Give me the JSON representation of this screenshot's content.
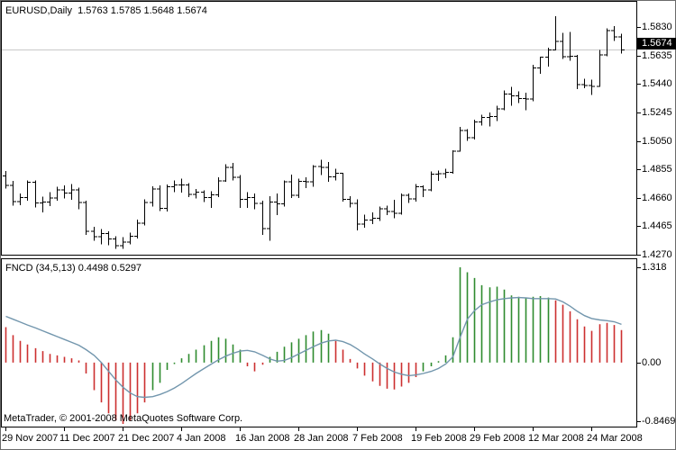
{
  "price_chart": {
    "title": "EURUSD,Daily",
    "ohlc_label": "1.5763 1.5785 1.5648 1.5674",
    "current_price_label": "1.5674"
  },
  "indicator": {
    "title": "FNCD (34,5,13)",
    "values_label": "0.4498 0.5297"
  },
  "footer": {
    "copyright": "MetaTrader, © 2001-2008 MetaQuotes Software Corp."
  },
  "colors": {
    "bar_black": "#000000",
    "up_green": "#2e8b2e",
    "down_red": "#cc2f2f",
    "signal_blue": "#7296ad",
    "price_line_gray": "#c8c8c8",
    "tag_bg": "#000000",
    "tag_text": "#ffffff"
  },
  "chart_data": [
    {
      "type": "bar",
      "subtype": "ohlc-bars",
      "title": "EURUSD,Daily",
      "last_quote": {
        "open": 1.5763,
        "high": 1.5785,
        "low": 1.5648,
        "close": 1.5674
      },
      "current_price": 1.5674,
      "ylim": [
        1.427,
        1.583
      ],
      "y_ticks": [
        1.583,
        1.5635,
        1.544,
        1.5245,
        1.505,
        1.4855,
        1.466,
        1.4465,
        1.427
      ],
      "x_ticks": [
        {
          "i": 0,
          "label": "29 Nov 2007"
        },
        {
          "i": 8,
          "label": "11 Dec 2007"
        },
        {
          "i": 16,
          "label": "21 Dec 2007"
        },
        {
          "i": 24,
          "label": "4 Jan 2008"
        },
        {
          "i": 32,
          "label": "16 Jan 2008"
        },
        {
          "i": 40,
          "label": "28 Jan 2008"
        },
        {
          "i": 48,
          "label": "7 Feb 2008"
        },
        {
          "i": 56,
          "label": "19 Feb 2008"
        },
        {
          "i": 64,
          "label": "29 Feb 2008"
        },
        {
          "i": 72,
          "label": "12 Mar 2008"
        },
        {
          "i": 80,
          "label": "24 Mar 2008"
        }
      ],
      "bars": [
        [
          1.481,
          1.4843,
          1.4722,
          1.4744
        ],
        [
          1.4744,
          1.4776,
          1.4605,
          1.4633
        ],
        [
          1.4633,
          1.4688,
          1.4608,
          1.4663
        ],
        [
          1.4663,
          1.4778,
          1.464,
          1.4766
        ],
        [
          1.4766,
          1.4779,
          1.4595,
          1.4625
        ],
        [
          1.4625,
          1.4668,
          1.456,
          1.4631
        ],
        [
          1.4631,
          1.4698,
          1.4602,
          1.4657
        ],
        [
          1.4657,
          1.4735,
          1.464,
          1.4714
        ],
        [
          1.4714,
          1.4745,
          1.4655,
          1.4692
        ],
        [
          1.4692,
          1.4755,
          1.4645,
          1.4713
        ],
        [
          1.4713,
          1.473,
          1.458,
          1.4627
        ],
        [
          1.4627,
          1.464,
          1.4405,
          1.443
        ],
        [
          1.443,
          1.446,
          1.4365,
          1.4393
        ],
        [
          1.4393,
          1.4445,
          1.434,
          1.4415
        ],
        [
          1.4415,
          1.443,
          1.4335,
          1.4378
        ],
        [
          1.4378,
          1.4395,
          1.431,
          1.4332
        ],
        [
          1.4332,
          1.439,
          1.4309,
          1.4356
        ],
        [
          1.4356,
          1.442,
          1.434,
          1.4395
        ],
        [
          1.4395,
          1.451,
          1.438,
          1.4485
        ],
        [
          1.4485,
          1.465,
          1.447,
          1.4627
        ],
        [
          1.4627,
          1.474,
          1.46,
          1.472
        ],
        [
          1.472,
          1.4745,
          1.457,
          1.4589
        ],
        [
          1.4589,
          1.475,
          1.4565,
          1.4737
        ],
        [
          1.4737,
          1.478,
          1.47,
          1.4747
        ],
        [
          1.4747,
          1.479,
          1.4695,
          1.4748
        ],
        [
          1.4748,
          1.476,
          1.4665,
          1.4684
        ],
        [
          1.4684,
          1.472,
          1.4655,
          1.4697
        ],
        [
          1.4697,
          1.471,
          1.463,
          1.4663
        ],
        [
          1.4663,
          1.4705,
          1.459,
          1.468
        ],
        [
          1.468,
          1.48,
          1.4665,
          1.4776
        ],
        [
          1.4776,
          1.489,
          1.477,
          1.4869
        ],
        [
          1.4869,
          1.49,
          1.478,
          1.4801
        ],
        [
          1.4801,
          1.4815,
          1.459,
          1.4649
        ],
        [
          1.4649,
          1.47,
          1.459,
          1.4662
        ],
        [
          1.4662,
          1.469,
          1.458,
          1.4622
        ],
        [
          1.4622,
          1.464,
          1.4405,
          1.4448
        ],
        [
          1.4448,
          1.4672,
          1.4365,
          1.4632
        ],
        [
          1.4632,
          1.469,
          1.454,
          1.4618
        ],
        [
          1.4618,
          1.478,
          1.46,
          1.4769
        ],
        [
          1.4769,
          1.482,
          1.466,
          1.4677
        ],
        [
          1.4677,
          1.479,
          1.466,
          1.4772
        ],
        [
          1.4772,
          1.48,
          1.4725,
          1.477
        ],
        [
          1.477,
          1.4885,
          1.4735,
          1.4875
        ],
        [
          1.4875,
          1.492,
          1.4815,
          1.4867
        ],
        [
          1.4867,
          1.4905,
          1.477,
          1.4804
        ],
        [
          1.4804,
          1.486,
          1.478,
          1.4827
        ],
        [
          1.4827,
          1.483,
          1.4635,
          1.4648
        ],
        [
          1.4648,
          1.467,
          1.4595,
          1.4622
        ],
        [
          1.4622,
          1.465,
          1.4438,
          1.4481
        ],
        [
          1.4481,
          1.4545,
          1.4455,
          1.4507
        ],
        [
          1.4507,
          1.456,
          1.448,
          1.4521
        ],
        [
          1.4521,
          1.46,
          1.45,
          1.4585
        ],
        [
          1.4585,
          1.4605,
          1.454,
          1.4566
        ],
        [
          1.4566,
          1.4645,
          1.452,
          1.4554
        ],
        [
          1.4554,
          1.469,
          1.4545,
          1.4676
        ],
        [
          1.4676,
          1.469,
          1.4625,
          1.4651
        ],
        [
          1.4651,
          1.4755,
          1.4635,
          1.4734
        ],
        [
          1.4734,
          1.4745,
          1.4665,
          1.4713
        ],
        [
          1.4713,
          1.484,
          1.4705,
          1.4822
        ],
        [
          1.4822,
          1.4845,
          1.4775,
          1.4824
        ],
        [
          1.4824,
          1.486,
          1.4795,
          1.4834
        ],
        [
          1.4834,
          1.4985,
          1.4825,
          1.498
        ],
        [
          1.498,
          1.5145,
          1.4975,
          1.512
        ],
        [
          1.512,
          1.513,
          1.505,
          1.5073
        ],
        [
          1.5073,
          1.5195,
          1.506,
          1.5178
        ],
        [
          1.5178,
          1.523,
          1.5155,
          1.521
        ],
        [
          1.521,
          1.5245,
          1.515,
          1.5215
        ],
        [
          1.5215,
          1.529,
          1.5185,
          1.5268
        ],
        [
          1.5268,
          1.5395,
          1.526,
          1.5371
        ],
        [
          1.5371,
          1.542,
          1.529,
          1.5357
        ],
        [
          1.5357,
          1.539,
          1.531,
          1.534
        ],
        [
          1.534,
          1.538,
          1.526,
          1.5337
        ],
        [
          1.5337,
          1.557,
          1.532,
          1.555
        ],
        [
          1.555,
          1.5625,
          1.551,
          1.5623
        ],
        [
          1.5623,
          1.5688,
          1.556,
          1.5674
        ],
        [
          1.5674,
          1.5905,
          1.567,
          1.573
        ],
        [
          1.573,
          1.579,
          1.561,
          1.5628
        ],
        [
          1.5628,
          1.5795,
          1.56,
          1.5629
        ],
        [
          1.5629,
          1.564,
          1.5405,
          1.5434
        ],
        [
          1.5434,
          1.5475,
          1.541,
          1.543
        ],
        [
          1.543,
          1.547,
          1.5365,
          1.5424
        ],
        [
          1.5424,
          1.5672,
          1.542,
          1.5639
        ],
        [
          1.5639,
          1.582,
          1.563,
          1.5805
        ],
        [
          1.5805,
          1.5837,
          1.5735,
          1.5763
        ],
        [
          1.5763,
          1.5785,
          1.5648,
          1.5674
        ]
      ]
    },
    {
      "type": "bar",
      "subtype": "histogram-with-signal-line",
      "title": "FNCD (34,5,13)",
      "current_values": [
        0.4498,
        0.5297
      ],
      "ylim": [
        -0.8469,
        1.318
      ],
      "y_ticks": [
        {
          "v": 1.318,
          "label": "1.318"
        },
        {
          "v": 0,
          "label": "0.00"
        },
        {
          "v": -0.8469,
          "label": "-0.8469"
        }
      ],
      "histogram": [
        0.49,
        0.38,
        0.3,
        0.25,
        0.2,
        0.16,
        0.12,
        0.1,
        0.08,
        0.06,
        0.03,
        -0.15,
        -0.38,
        -0.55,
        -0.7,
        -0.8,
        -0.8469,
        -0.8,
        -0.7,
        -0.55,
        -0.38,
        -0.28,
        -0.1,
        -0.02,
        0.06,
        0.12,
        0.18,
        0.24,
        0.3,
        0.35,
        0.33,
        0.25,
        0.18,
        -0.05,
        -0.12,
        -0.03,
        0.08,
        0.15,
        0.22,
        0.28,
        0.33,
        0.38,
        0.43,
        0.45,
        0.4,
        0.3,
        0.18,
        0.05,
        -0.08,
        -0.18,
        -0.26,
        -0.32,
        -0.36,
        -0.37,
        -0.33,
        -0.28,
        -0.2,
        -0.12,
        -0.05,
        0.02,
        0.1,
        0.35,
        1.318,
        1.25,
        1.17,
        1.07,
        1.04,
        1.05,
        1.01,
        0.93,
        0.91,
        0.9,
        0.91,
        0.92,
        0.9,
        0.86,
        0.8,
        0.71,
        0.6,
        0.5,
        0.44,
        0.53,
        0.55,
        0.52,
        0.4498
      ],
      "signal": [
        0.64,
        0.6,
        0.56,
        0.52,
        0.48,
        0.44,
        0.4,
        0.36,
        0.32,
        0.28,
        0.24,
        0.18,
        0.1,
        0.0,
        -0.12,
        -0.24,
        -0.34,
        -0.42,
        -0.47,
        -0.48,
        -0.47,
        -0.44,
        -0.4,
        -0.35,
        -0.29,
        -0.22,
        -0.15,
        -0.08,
        -0.02,
        0.04,
        0.09,
        0.13,
        0.16,
        0.17,
        0.15,
        0.1,
        0.05,
        0.02,
        0.03,
        0.07,
        0.12,
        0.17,
        0.22,
        0.27,
        0.3,
        0.31,
        0.29,
        0.25,
        0.19,
        0.12,
        0.05,
        -0.02,
        -0.08,
        -0.13,
        -0.16,
        -0.18,
        -0.17,
        -0.15,
        -0.12,
        -0.08,
        -0.02,
        0.08,
        0.35,
        0.6,
        0.72,
        0.8,
        0.84,
        0.87,
        0.885,
        0.895,
        0.9,
        0.895,
        0.885,
        0.885,
        0.885,
        0.88,
        0.84,
        0.78,
        0.71,
        0.65,
        0.61,
        0.59,
        0.58,
        0.565,
        0.5297
      ]
    }
  ]
}
